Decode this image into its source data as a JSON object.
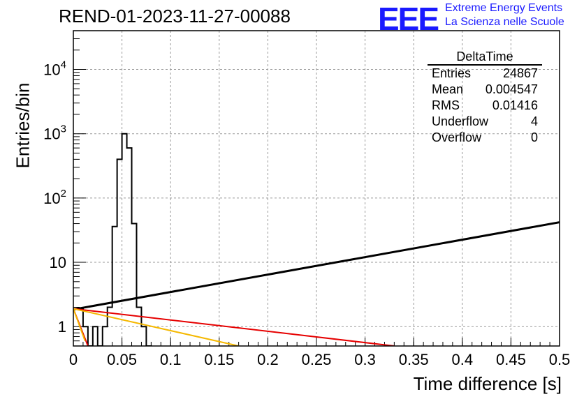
{
  "title": "REND-01-2023-11-27-00088",
  "logo": {
    "mark": "EEE",
    "line1": "Extreme Energy Events",
    "line2": "La Scienza nelle Scuole",
    "color": "#1a1aff"
  },
  "stats_box": {
    "title": "DeltaTime",
    "rows": [
      {
        "label": "Entries",
        "value": "24867"
      },
      {
        "label": "Mean",
        "value": "0.004547"
      },
      {
        "label": "RMS",
        "value": "0.01416"
      },
      {
        "label": "Underflow",
        "value": "4"
      },
      {
        "label": "Overflow",
        "value": "0"
      }
    ]
  },
  "chart_data": {
    "type": "line",
    "xlabel": "Time difference [s]",
    "ylabel": "Entries/bin",
    "xlim": [
      0,
      0.5
    ],
    "ylim": [
      0.5,
      40000
    ],
    "yscale": "log",
    "grid": true,
    "x_ticks": [
      "0",
      "0.05",
      "0.1",
      "0.15",
      "0.2",
      "0.25",
      "0.3",
      "0.35",
      "0.4",
      "0.45",
      "0.5"
    ],
    "y_ticks": [
      {
        "value": 1,
        "label": "1"
      },
      {
        "value": 10,
        "label": "10"
      },
      {
        "value": 100,
        "label": "10^2"
      },
      {
        "value": 1000,
        "label": "10^3"
      },
      {
        "value": 10000,
        "label": "10^4"
      }
    ],
    "histogram": {
      "bin_width": 0.005,
      "color": "#000000",
      "bins": [
        {
          "x0": 0.0,
          "count": 1.9
        },
        {
          "x0": 0.005,
          "count": 1.9
        },
        {
          "x0": 0.01,
          "count": 1
        },
        {
          "x0": 0.015,
          "count": 0.4
        },
        {
          "x0": 0.02,
          "count": 1
        },
        {
          "x0": 0.025,
          "count": 0.4
        },
        {
          "x0": 0.03,
          "count": 1
        },
        {
          "x0": 0.035,
          "count": 2
        },
        {
          "x0": 0.04,
          "count": 36
        },
        {
          "x0": 0.045,
          "count": 400
        },
        {
          "x0": 0.05,
          "count": 1000
        },
        {
          "x0": 0.055,
          "count": 600
        },
        {
          "x0": 0.06,
          "count": 40
        },
        {
          "x0": 0.065,
          "count": 2
        },
        {
          "x0": 0.07,
          "count": 1
        },
        {
          "x0": 0.075,
          "count": 0.4
        }
      ]
    },
    "series": [
      {
        "color": "#000000",
        "x": [
          0,
          0.5
        ],
        "y": [
          1.85,
          42
        ]
      },
      {
        "color": "#e60000",
        "x": [
          0,
          0.33
        ],
        "y": [
          1.9,
          0.5
        ]
      },
      {
        "color": "#f5b800",
        "x": [
          0,
          0.17
        ],
        "y": [
          1.9,
          0.5
        ]
      },
      {
        "color": "#e60000",
        "x": [
          0,
          0.015
        ],
        "y": [
          1.9,
          0.5
        ]
      },
      {
        "color": "#f5b800",
        "x": [
          0,
          0.012
        ],
        "y": [
          1.9,
          0.6
        ]
      }
    ]
  }
}
